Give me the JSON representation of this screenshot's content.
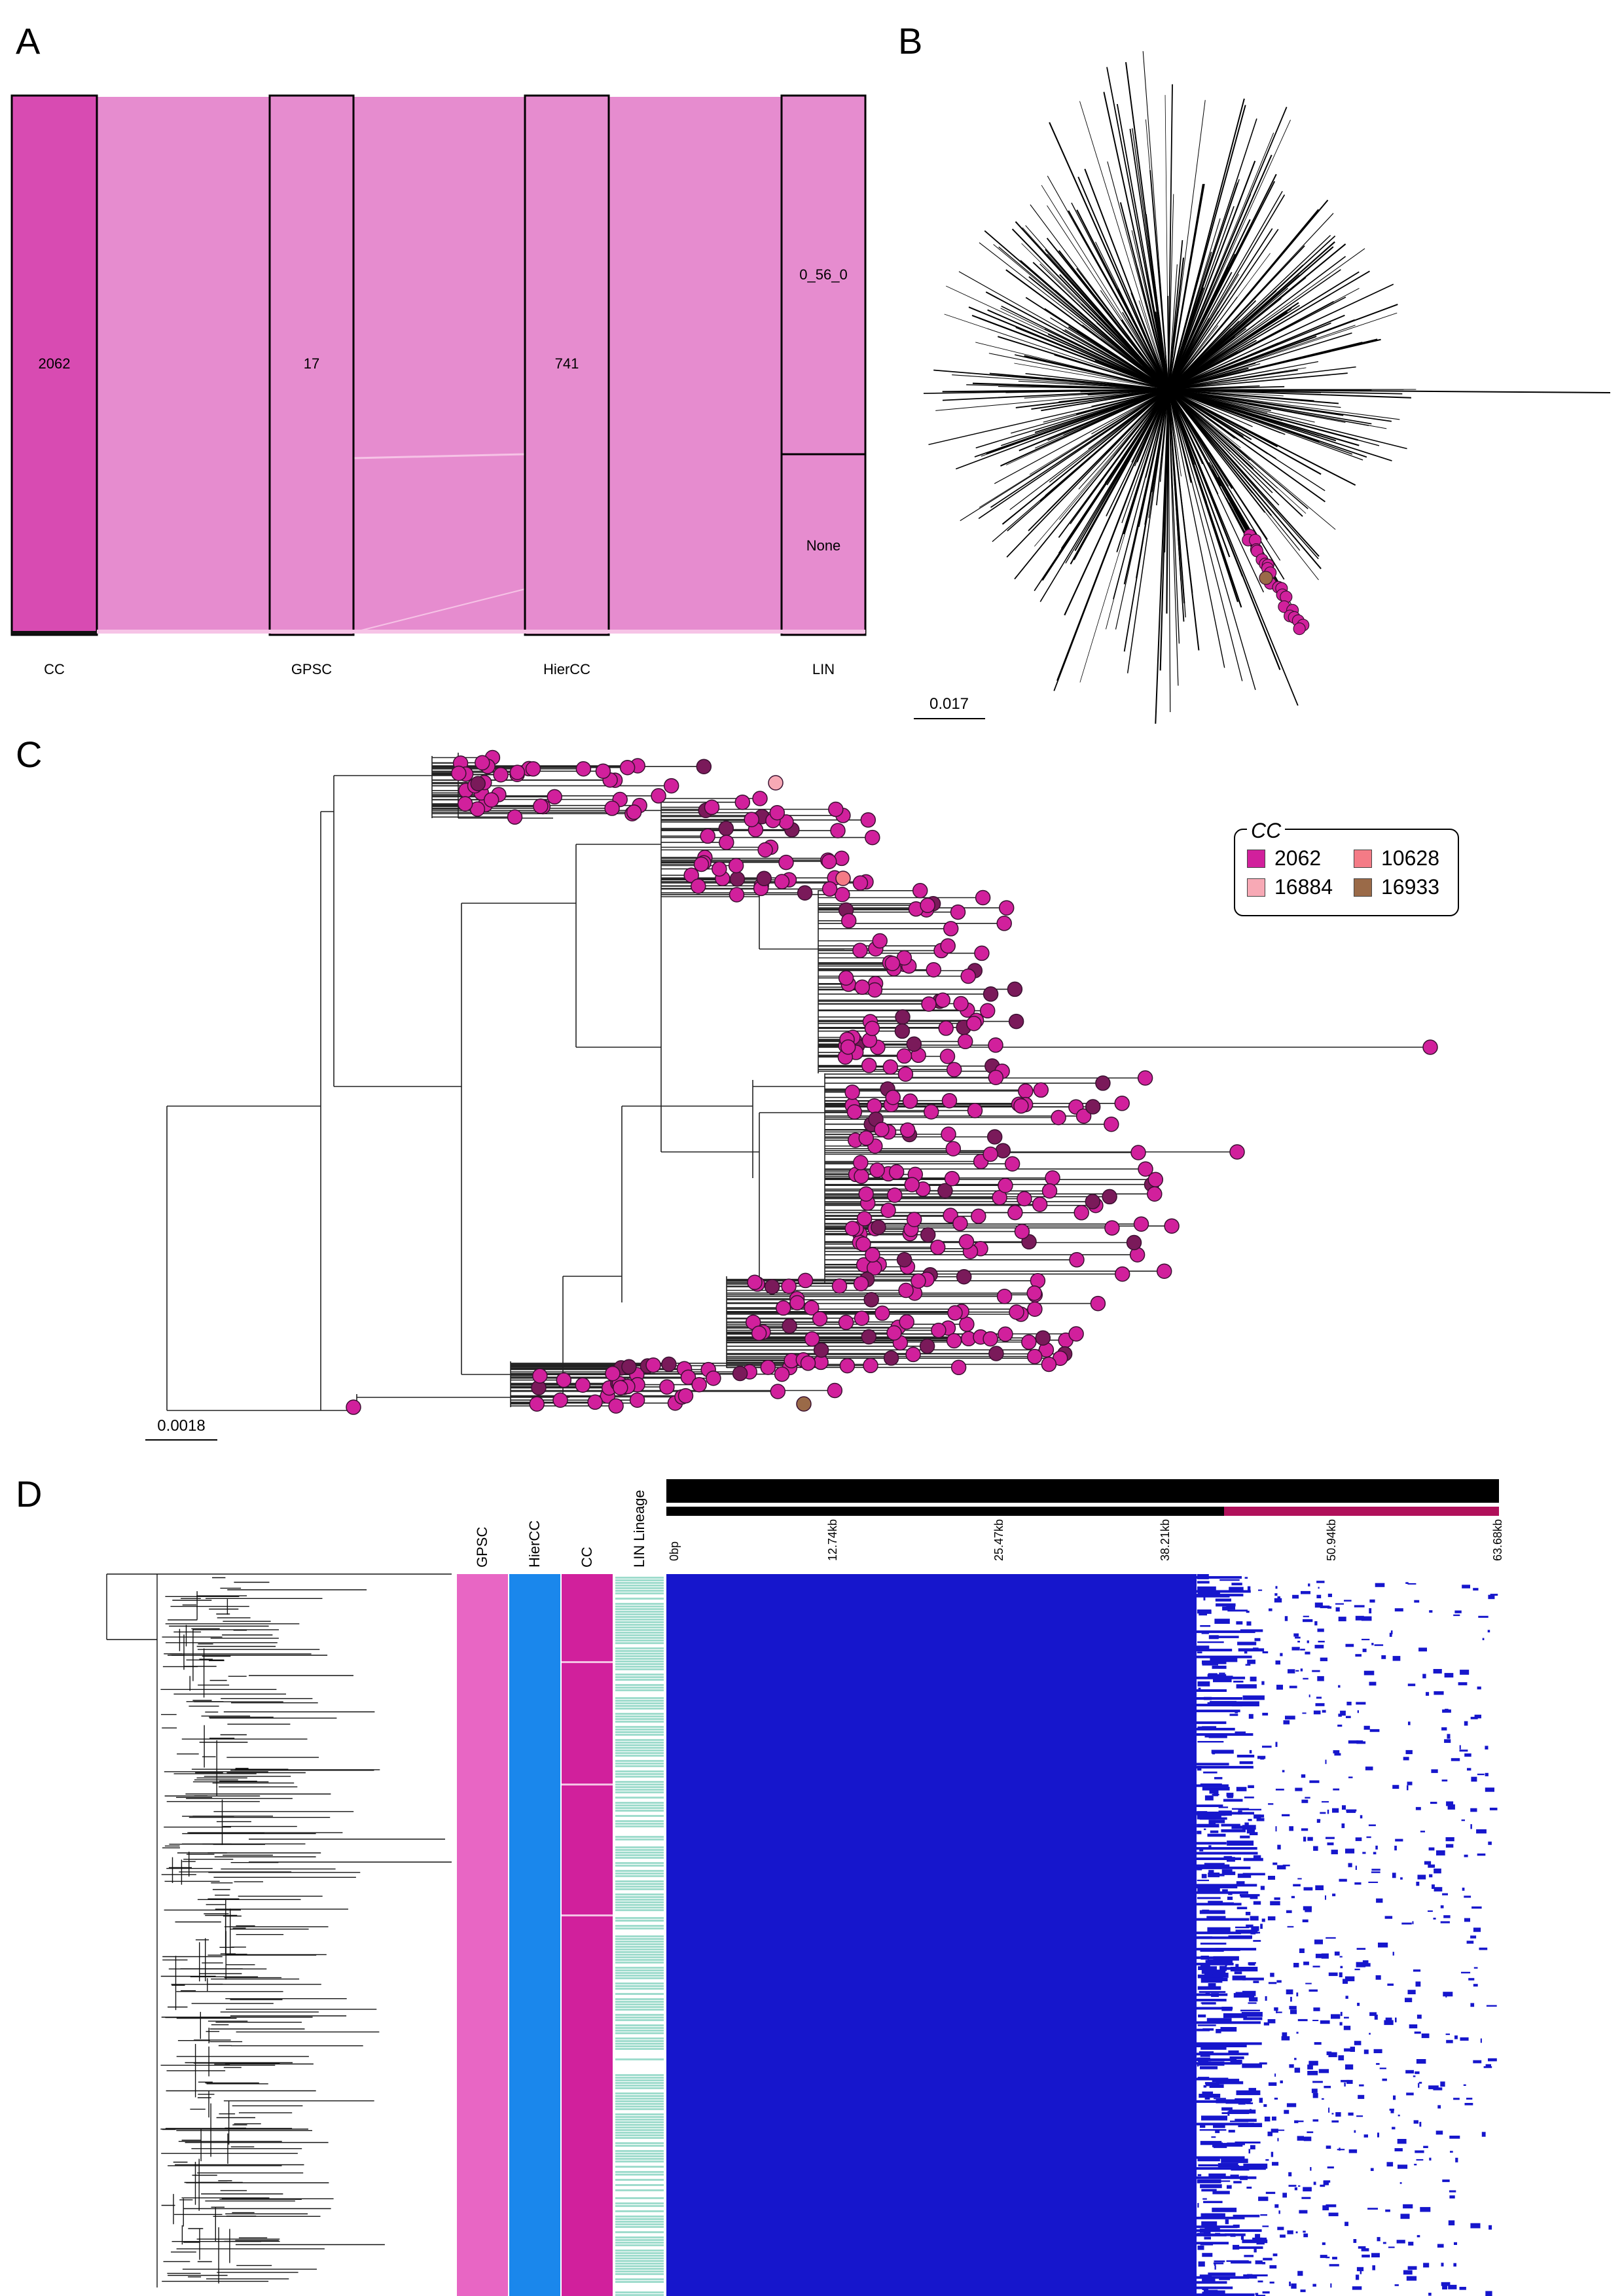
{
  "panels": {
    "A": {
      "letter": "A",
      "nodes": {
        "cc": "2062",
        "gpsc": "17",
        "hiercc": "741",
        "lin_top": "0_56_0",
        "lin_bottom": "None"
      },
      "axis": [
        "CC",
        "GPSC",
        "HierCC",
        "LIN"
      ],
      "colors": {
        "cc_node": "#d84bb2",
        "flow": "#e68ccf",
        "outline": "#000000"
      }
    },
    "B": {
      "letter": "B",
      "scale_label": "0.017",
      "colors": {
        "branch": "#000000",
        "tip_cc2062": "#d1209c",
        "tip_cc16933": "#9a6a48"
      }
    },
    "C": {
      "letter": "C",
      "scale_label": "0.0018",
      "legend": {
        "title": "CC",
        "items": [
          {
            "label": "2062",
            "color": "#d1209c"
          },
          {
            "label": "10628",
            "color": "#f47b86"
          },
          {
            "label": "16884",
            "color": "#f7a9b5"
          },
          {
            "label": "16933",
            "color": "#9a6a48"
          }
        ]
      }
    },
    "D": {
      "letter": "D",
      "columns": [
        "GPSC",
        "HierCC",
        "CC",
        "LIN Lineage"
      ],
      "column_colors": {
        "gpsc": "#e866c4",
        "hiercc": "#1a87ec",
        "cc": "#d1209c",
        "lin": "#9fdccd"
      },
      "genome_ticks": [
        "0bp",
        "12.74kb",
        "25.47kb",
        "38.21kb",
        "50.94kb",
        "63.68kb"
      ],
      "colors": {
        "coverage": "#1616cc",
        "track": "#000000",
        "track_accent": "#b0105a"
      }
    }
  }
}
